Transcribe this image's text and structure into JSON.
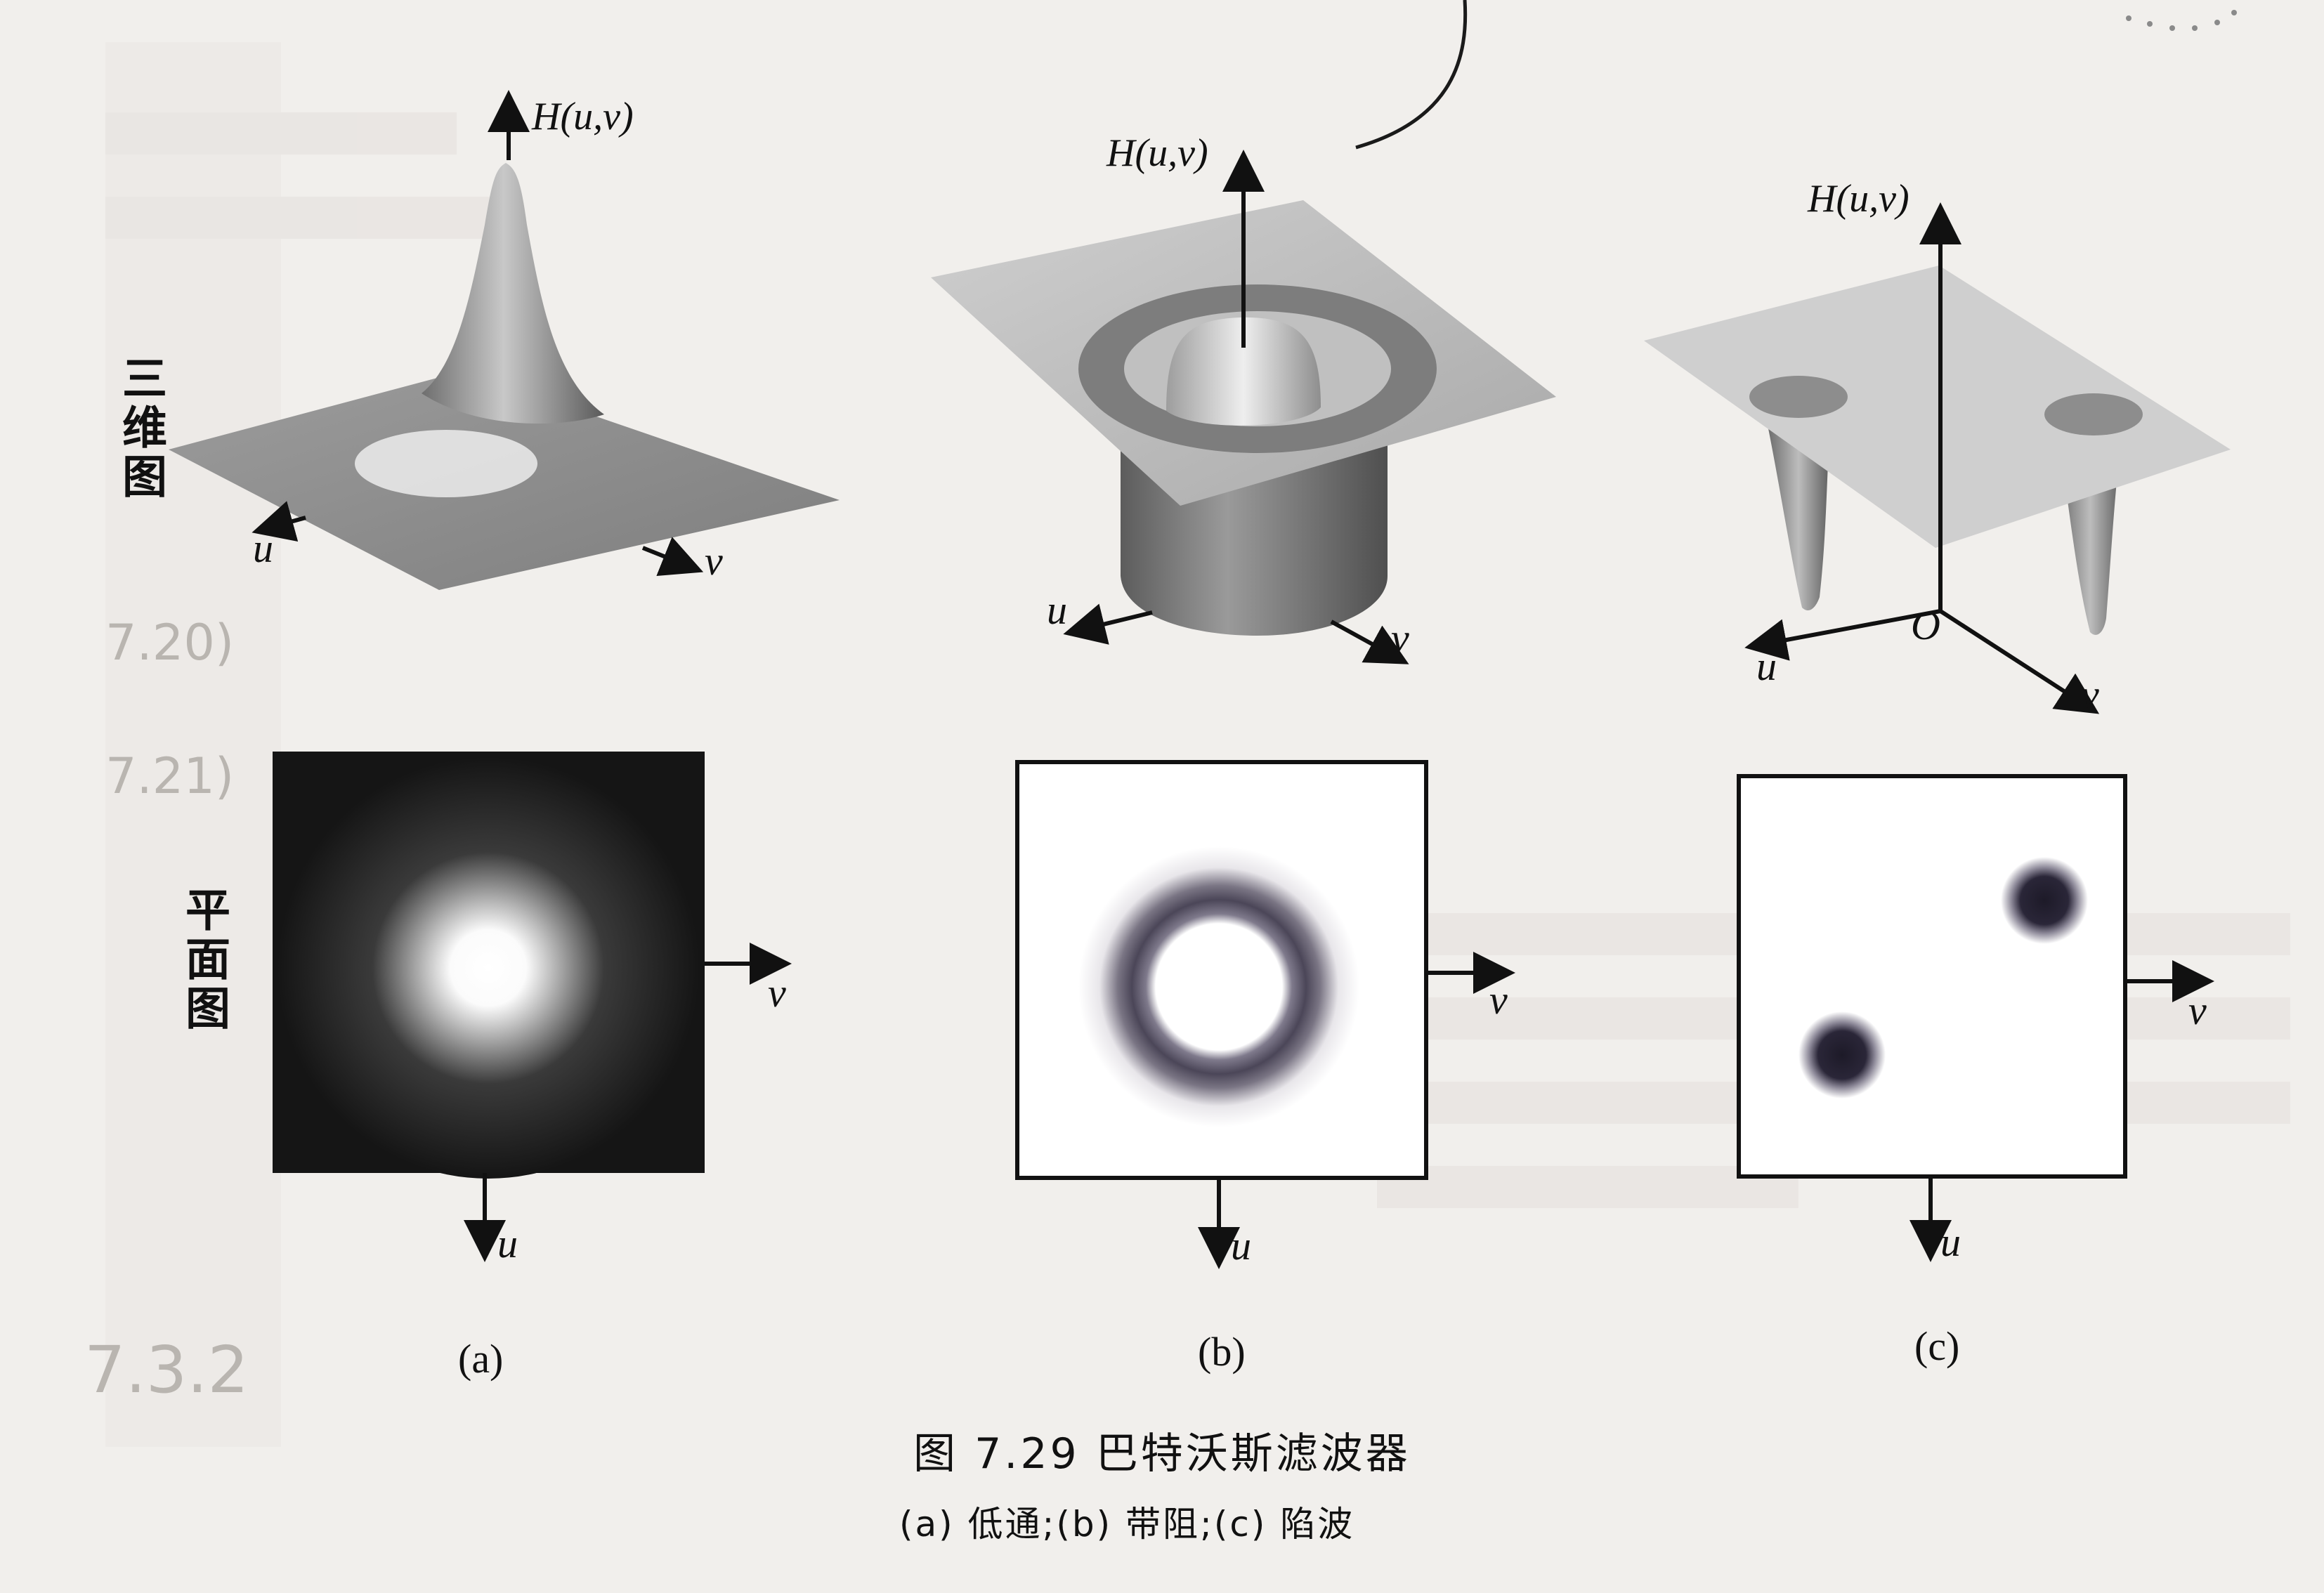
{
  "row_labels": {
    "three_d": "三维图",
    "plane": "平面图"
  },
  "axes": {
    "h_label": "H(u,v)",
    "u": "u",
    "v": "v",
    "origin": "O"
  },
  "panels": [
    {
      "sub_label": "(a)"
    },
    {
      "sub_label": "(b)"
    },
    {
      "sub_label": "(c)"
    }
  ],
  "caption": {
    "title": "图 7.29    巴特沃斯滤波器",
    "subtitle": "(a) 低通;(b) 带阻;(c) 陷波"
  },
  "background_text": {
    "heading": "7.3.2",
    "equation_refs": [
      "7.20)",
      "7.21)"
    ]
  },
  "colors": {
    "paper": "#f1efec",
    "ink": "#111111",
    "dark_field": "#151515"
  }
}
